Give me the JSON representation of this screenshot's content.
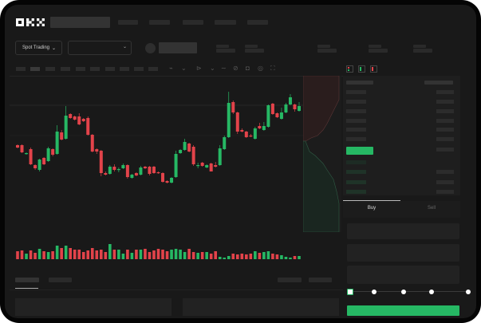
{
  "header": {
    "logo": "OKX"
  },
  "toolbar": {
    "market_select": "Spot Trading"
  },
  "trade_panel": {
    "tabs": [
      "Buy",
      "Sell"
    ],
    "active_tab": "Buy"
  },
  "colors": {
    "up": "#26b864",
    "down": "#e2434a",
    "background": "#191919",
    "accent": "#26b864"
  },
  "chart_data": {
    "type": "candlestick",
    "grid": false,
    "ohlc": [
      [
        118,
        119,
        114,
        115
      ],
      [
        118,
        119,
        108,
        109
      ],
      [
        107,
        109,
        106,
        108
      ],
      [
        113,
        115,
        93,
        94
      ],
      [
        93,
        94,
        87,
        89
      ],
      [
        87,
        101,
        85,
        100
      ],
      [
        102,
        103,
        93,
        94
      ],
      [
        98,
        116,
        97,
        114
      ],
      [
        113,
        114,
        104,
        106
      ],
      [
        107,
        143,
        106,
        135
      ],
      [
        134,
        137,
        124,
        125
      ],
      [
        126,
        167,
        125,
        155
      ],
      [
        157,
        158,
        151,
        152
      ],
      [
        154,
        155,
        149,
        150
      ],
      [
        154,
        158,
        143,
        144
      ],
      [
        151,
        152,
        147,
        148
      ],
      [
        152,
        154,
        130,
        131
      ],
      [
        131,
        132,
        109,
        110
      ],
      [
        113,
        114,
        107,
        110
      ],
      [
        111,
        112,
        79,
        83
      ],
      [
        83,
        85,
        80,
        81
      ],
      [
        82,
        93,
        81,
        91
      ],
      [
        91,
        94,
        85,
        87
      ],
      [
        87,
        90,
        84,
        88
      ],
      [
        89,
        95,
        88,
        93
      ],
      [
        93,
        94,
        76,
        78
      ],
      [
        77,
        82,
        76,
        81
      ],
      [
        83,
        84,
        79,
        80
      ],
      [
        81,
        92,
        80,
        90
      ],
      [
        91,
        92,
        88,
        89
      ],
      [
        91,
        92,
        80,
        82
      ],
      [
        91,
        92,
        82,
        83
      ],
      [
        84,
        85,
        82,
        83
      ],
      [
        83,
        84,
        71,
        72
      ],
      [
        73,
        74,
        70,
        71
      ],
      [
        71,
        78,
        70,
        77
      ],
      [
        78,
        111,
        77,
        107
      ],
      [
        108,
        113,
        107,
        112
      ],
      [
        112,
        126,
        111,
        122
      ],
      [
        120,
        121,
        109,
        110
      ],
      [
        116,
        118,
        92,
        94
      ],
      [
        92,
        96,
        89,
        93
      ],
      [
        96,
        97,
        91,
        92
      ],
      [
        90,
        94,
        89,
        93
      ],
      [
        95,
        96,
        85,
        85
      ],
      [
        93,
        97,
        90,
        91
      ],
      [
        93,
        118,
        92,
        114
      ],
      [
        113,
        130,
        112,
        128
      ],
      [
        128,
        185,
        127,
        171
      ],
      [
        172,
        174,
        157,
        159
      ],
      [
        159,
        160,
        132,
        135
      ],
      [
        137,
        139,
        134,
        135
      ],
      [
        135,
        136,
        127,
        128
      ],
      [
        130,
        132,
        128,
        129
      ],
      [
        126,
        141,
        125,
        139
      ],
      [
        142,
        146,
        138,
        139
      ],
      [
        137,
        147,
        136,
        142
      ],
      [
        141,
        169,
        140,
        168
      ],
      [
        170,
        171,
        156,
        157
      ],
      [
        158,
        159,
        152,
        153
      ],
      [
        151,
        165,
        150,
        159
      ],
      [
        159,
        171,
        158,
        169
      ],
      [
        169,
        182,
        168,
        178
      ],
      [
        169,
        170,
        160,
        163
      ],
      [
        161,
        172,
        160,
        167
      ]
    ],
    "volume": [
      10,
      11,
      7,
      11,
      8,
      13,
      10,
      9,
      10,
      17,
      14,
      17,
      14,
      12,
      12,
      9,
      11,
      14,
      11,
      12,
      9,
      19,
      12,
      12,
      7,
      12,
      8,
      12,
      12,
      13,
      9,
      11,
      13,
      12,
      10,
      12,
      13,
      12,
      9,
      13,
      9,
      8,
      9,
      9,
      7,
      10,
      3,
      2,
      4,
      7,
      6,
      7,
      6,
      7,
      10,
      8,
      9,
      10,
      7,
      6,
      5,
      3,
      2,
      4,
      4
    ]
  }
}
